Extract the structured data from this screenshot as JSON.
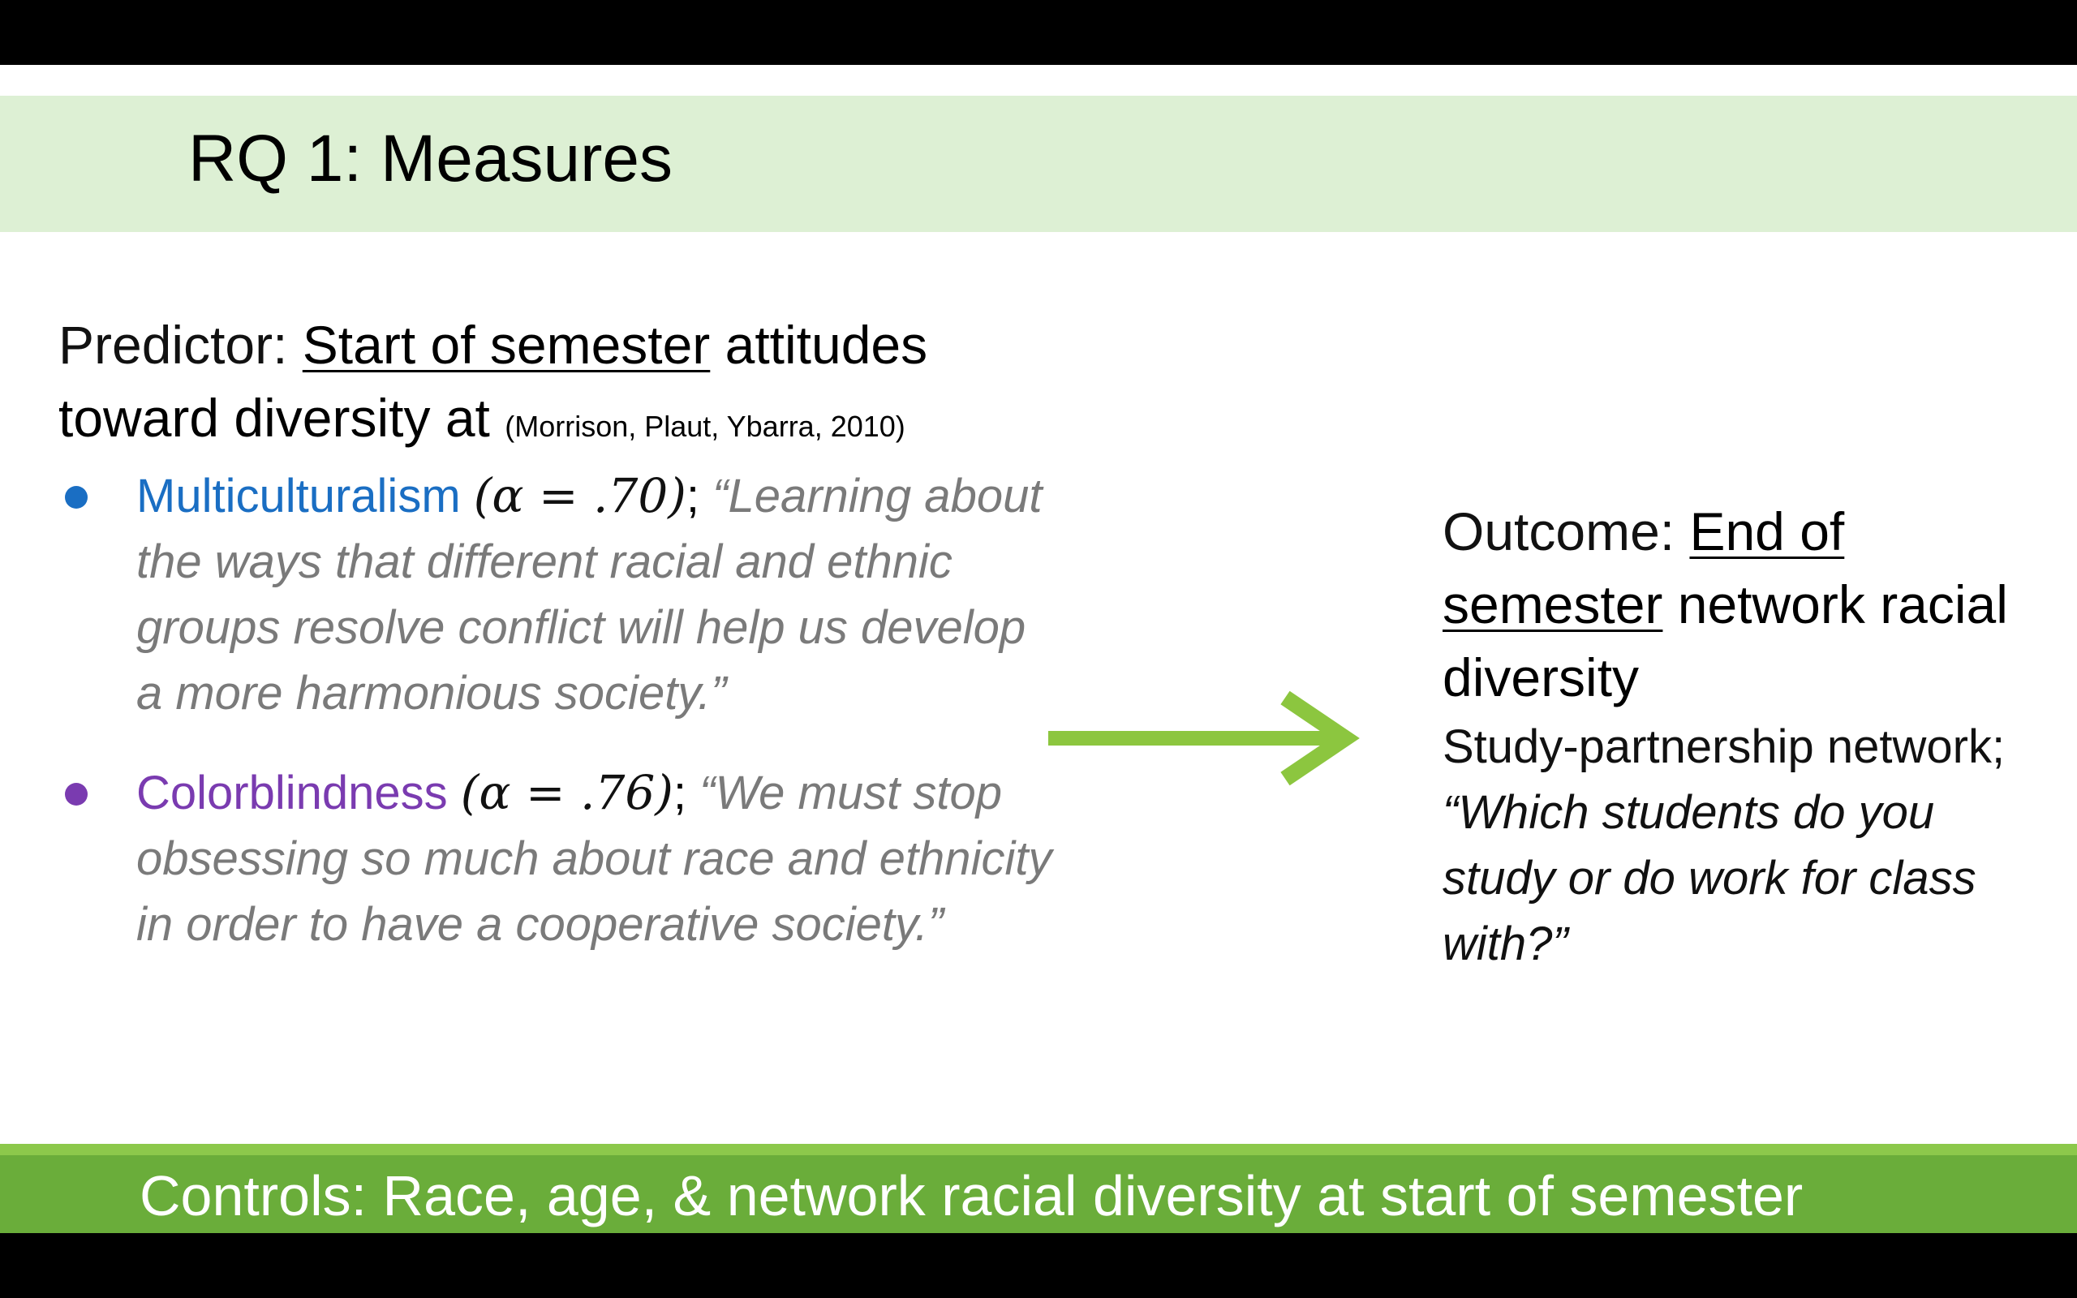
{
  "slide": {
    "title": "RQ 1: Measures",
    "predictor": {
      "label": "Predictor: ",
      "underlined": "Start of semester",
      "rest_line1": " attitudes",
      "rest_line2": "toward diversity at ",
      "citation": "(Morrison, Plaut, Ybarra, 2010)",
      "items": [
        {
          "term": "Multiculturalism",
          "alpha": "(α = .70)",
          "sep": "; ",
          "quote": "“Learning about the ways that different racial and ethnic groups resolve conflict will help us develop a more harmonious society.”",
          "color": "#1a6ec3"
        },
        {
          "term": "Colorblindness",
          "alpha": "(α = .76)",
          "sep": "; ",
          "quote": "“We must stop obsessing so much about race and ethnicity in order to have a cooperative society.”",
          "color": "#7a3bb0"
        }
      ]
    },
    "arrow_icon": "right-arrow-icon",
    "arrow_color": "#8cc63f",
    "outcome": {
      "label": "Outcome: ",
      "underlined_1": "End of",
      "underlined_2": "semester",
      "rest": " network racial diversity",
      "subtitle": "Study-partnership network;",
      "quote": "“Which students do you study or do work for class with?”"
    },
    "controls": {
      "label": "Controls:",
      "text": " Race, age, & network racial diversity at start of semester"
    },
    "colors": {
      "title_band": "#ddf0d4",
      "controls_band": "#6aad3a",
      "quote_gray": "#7a7a7a"
    }
  }
}
